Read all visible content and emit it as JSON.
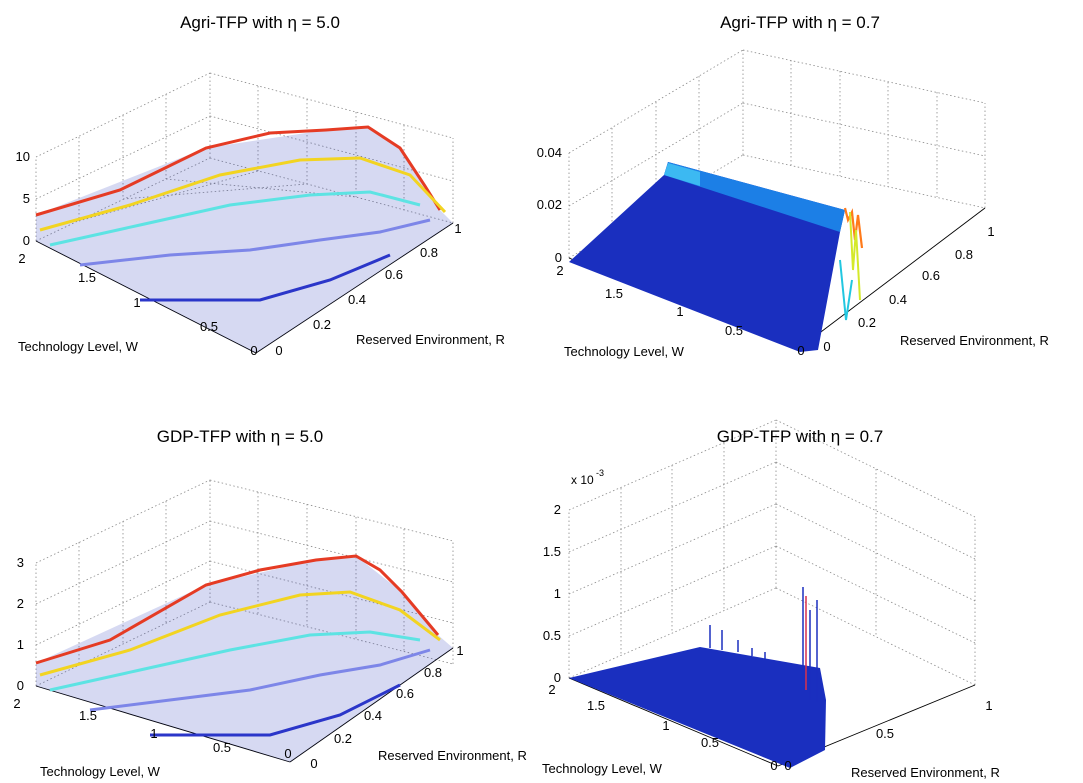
{
  "chart_data": [
    {
      "type": "surface",
      "title": "Agri-TFP with η = 5.0",
      "xlabel": "Technology Level, W",
      "ylabel": "Reserved Environment, R",
      "xlim": [
        0,
        2
      ],
      "ylim": [
        0,
        1
      ],
      "zlim": [
        0,
        10
      ],
      "x_ticks": [
        "0",
        "0.5",
        "1",
        "1.5",
        "2"
      ],
      "y_ticks": [
        "0",
        "0.2",
        "0.4",
        "0.6",
        "0.8",
        "1"
      ],
      "z_ticks": [
        "0",
        "5",
        "10"
      ],
      "z_multiplier": "",
      "colormap": "jet",
      "grid": true,
      "surface": {
        "shape": "ridge",
        "peak_z": 9.5,
        "peak_at": {
          "W": 2,
          "R": 0.8
        },
        "edge_z": 2
      }
    },
    {
      "type": "surface",
      "title": "Agri-TFP with η = 0.7",
      "xlabel": "Technology Level, W",
      "ylabel": "Reserved Environment, R",
      "xlim": [
        0,
        2
      ],
      "ylim": [
        0,
        1
      ],
      "zlim": [
        0,
        0.04
      ],
      "x_ticks": [
        "0",
        "0.5",
        "1",
        "1.5",
        "2"
      ],
      "y_ticks": [
        "0",
        "0.2",
        "0.4",
        "0.6",
        "0.8",
        "1"
      ],
      "z_ticks": [
        "0",
        "0.02",
        "0.04"
      ],
      "z_multiplier": "",
      "colormap": "jet",
      "grid": true,
      "surface": {
        "shape": "wall",
        "peak_z": 0.02,
        "wall_at_R": 0.1,
        "spike_z": 0.01
      }
    },
    {
      "type": "surface",
      "title": "GDP-TFP with η = 5.0",
      "xlabel": "Technology Level, W",
      "ylabel": "Reserved Environment, R",
      "xlim": [
        0,
        2
      ],
      "ylim": [
        0,
        1
      ],
      "zlim": [
        0,
        3
      ],
      "x_ticks": [
        "0",
        "0.5",
        "1",
        "1.5",
        "2"
      ],
      "y_ticks": [
        "0",
        "0.2",
        "0.4",
        "0.6",
        "0.8",
        "1"
      ],
      "z_ticks": [
        "0",
        "1",
        "2",
        "3"
      ],
      "z_multiplier": "",
      "colormap": "jet",
      "grid": true,
      "surface": {
        "shape": "ridge",
        "peak_z": 2.6,
        "peak_at": {
          "W": 2,
          "R": 0.8
        },
        "edge_z": 0.6
      }
    },
    {
      "type": "surface",
      "title": "GDP-TFP with η = 0.7",
      "xlabel": "Technology Level, W",
      "ylabel": "Reserved Environment, R",
      "xlim": [
        0,
        2
      ],
      "ylim": [
        0,
        1
      ],
      "zlim": [
        0,
        2
      ],
      "x_ticks": [
        "0",
        "0.5",
        "1",
        "1.5",
        "2"
      ],
      "y_ticks": [
        "0",
        "0.5",
        "1"
      ],
      "z_ticks": [
        "0",
        "0.5",
        "1",
        "1.5",
        "2"
      ],
      "z_multiplier": "x 10",
      "z_multiplier_exp": "-3",
      "colormap": "jet",
      "grid": true,
      "surface": {
        "shape": "flat-spikes",
        "base_z": 0.1,
        "spike_z": 1.2
      }
    }
  ]
}
